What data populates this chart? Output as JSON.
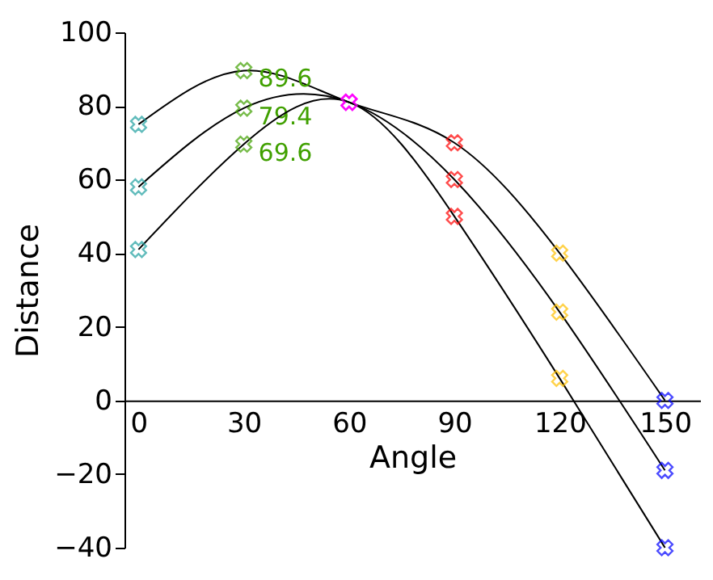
{
  "chart_data": {
    "type": "line",
    "xlabel": "Angle",
    "ylabel": "Distance",
    "x": [
      0,
      30,
      60,
      90,
      120,
      150
    ],
    "xlim": [
      -4,
      160
    ],
    "xticks": [
      0,
      30,
      60,
      90,
      120,
      150
    ],
    "ylim": [
      -40,
      100
    ],
    "yticks": [
      -40,
      -20,
      0,
      20,
      40,
      60,
      80,
      100
    ],
    "grid": false,
    "marker": "cross",
    "line_style": "solid",
    "series": [
      {
        "color": "#000000",
        "colors": [
          "#20a0a0",
          "#40a000",
          "#ff00ff",
          "#ff0000",
          "#ffc000",
          "#0000ff"
        ],
        "values": [
          75,
          89.6,
          81,
          70,
          40,
          0
        ],
        "value_labels": [
          null,
          "89.6",
          null,
          null,
          null,
          null
        ]
      },
      {
        "color": "#000000",
        "colors": [
          "#20a0a0",
          "#40a000",
          "#ff00ff",
          "#ff0000",
          "#ffc000",
          "#0000ff"
        ],
        "values": [
          58,
          79.4,
          81,
          60,
          24,
          -19
        ],
        "value_labels": [
          null,
          "79.4",
          null,
          null,
          null,
          null
        ]
      },
      {
        "color": "#000000",
        "colors": [
          "#20a0a0",
          "#40a000",
          "#ff00ff",
          "#ff0000",
          "#ffc000",
          "#0000ff"
        ],
        "values": [
          41,
          69.6,
          81,
          50,
          6,
          -40
        ],
        "value_labels": [
          null,
          "69.6",
          null,
          null,
          null,
          null
        ]
      }
    ]
  }
}
